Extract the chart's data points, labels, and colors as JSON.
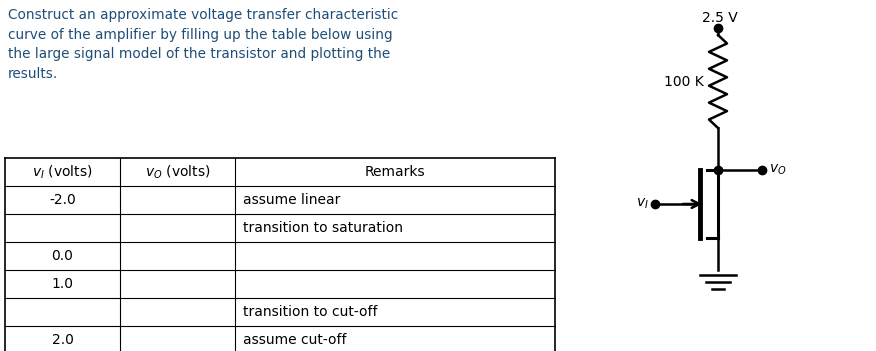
{
  "title_text": "Construct an approximate voltage transfer characteristic\ncurve of the amplifier by filling up the table below using\nthe large signal model of the transistor and plotting the\nresults.",
  "rows": [
    [
      "-2.0",
      "",
      "assume linear"
    ],
    [
      "",
      "",
      "transition to saturation"
    ],
    [
      "0.0",
      "",
      ""
    ],
    [
      "1.0",
      "",
      ""
    ],
    [
      "",
      "",
      "transition to cut-off"
    ],
    [
      "2.0",
      "",
      "assume cut-off"
    ]
  ],
  "circuit": {
    "vdd_label": "2.5 V",
    "r_label": "100 K",
    "vo_label": "v_O",
    "vi_label": "v_I"
  },
  "bg_color": "#ffffff",
  "text_color": "#000000",
  "table_line_color": "#000000",
  "title_color": "#1F4E79"
}
